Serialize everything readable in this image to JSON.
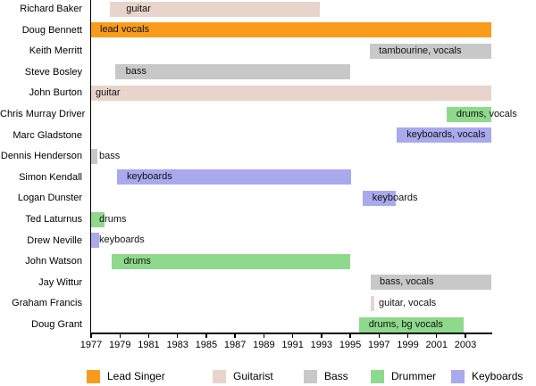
{
  "chart_data": {
    "type": "timeline",
    "title": "",
    "axis": {
      "min": 1977,
      "max": 2004.8,
      "tick_years": [
        1977,
        1979,
        1981,
        1983,
        1985,
        1987,
        1989,
        1991,
        1993,
        1995,
        1997,
        1999,
        2001,
        2003
      ],
      "grid": false
    },
    "colors": {
      "leadsinger": "#f99c1b",
      "guitarist": "#e8d4cb",
      "bass": "#c8c8c8",
      "drummer": "#8ed98c",
      "keyboards": "#a9a9ee",
      "axis": "#000000"
    },
    "members": [
      {
        "name": "Richard Baker",
        "role": "guitar",
        "category": "guitarist",
        "start": 1978.32,
        "end": 1992.9,
        "indent": 18
      },
      {
        "name": "Doug Bennett",
        "role": "lead vocals",
        "category": "leadsinger",
        "start": 1977.0,
        "end": 2004.8,
        "indent": 10
      },
      {
        "name": "Keith Merritt",
        "role": "tambourine, vocals",
        "category": "bass",
        "start": 1996.37,
        "end": 2004.8,
        "indent": 10
      },
      {
        "name": "Steve Bosley",
        "role": "bass",
        "category": "bass",
        "start": 1978.65,
        "end": 1994.97,
        "indent": 12
      },
      {
        "name": "John Burton",
        "role": "guitar",
        "category": "guitarist",
        "start": 1977.0,
        "end": 2004.8,
        "indent": 5
      },
      {
        "name": "Chris Murray Driver",
        "role": "drums, vocals",
        "category": "drummer",
        "start": 2001.69,
        "end": 2004.8,
        "indent": 11
      },
      {
        "name": "Marc Gladstone",
        "role": "keyboards, vocals",
        "category": "keyboards",
        "start": 1998.24,
        "end": 2004.8,
        "indent": 11
      },
      {
        "name": "Dennis Henderson",
        "role": "bass",
        "category": "bass",
        "start": 1977.0,
        "end": 1977.45,
        "indent": 9
      },
      {
        "name": "Simon Kendall",
        "role": "keyboards",
        "category": "keyboards",
        "start": 1978.8,
        "end": 1995.05,
        "indent": 11
      },
      {
        "name": "Logan Dunster",
        "role": "keyboards",
        "category": "keyboards",
        "start": 1995.85,
        "end": 1998.15,
        "indent": 11
      },
      {
        "name": "Ted Laturnus",
        "role": "drums",
        "category": "drummer",
        "start": 1977.0,
        "end": 1977.9,
        "indent": 9
      },
      {
        "name": "Drew Neville",
        "role": "keyboards",
        "category": "keyboards",
        "start": 1977.0,
        "end": 1977.55,
        "indent": 9
      },
      {
        "name": "John Watson",
        "role": "drums",
        "category": "drummer",
        "start": 1978.45,
        "end": 1994.99,
        "indent": 13
      },
      {
        "name": "Jay Wittur",
        "role": "bass, vocals",
        "category": "bass",
        "start": 1996.42,
        "end": 2004.8,
        "indent": 10
      },
      {
        "name": "Graham Francis",
        "role": "guitar, vocals",
        "category": "guitarist",
        "start": 1996.42,
        "end": 1996.67,
        "indent": 9
      },
      {
        "name": "Doug Grant",
        "role": "drums, bg vocals",
        "category": "drummer",
        "start": 1995.6,
        "end": 2002.85,
        "indent": 11
      }
    ],
    "legend": [
      {
        "label": "Lead Singer",
        "category": "leadsinger"
      },
      {
        "label": "Guitarist",
        "category": "guitarist"
      },
      {
        "label": "Bass",
        "category": "bass"
      },
      {
        "label": "Drummer",
        "category": "drummer"
      },
      {
        "label": "Keyboards",
        "category": "keyboards"
      }
    ],
    "legend_position": "bottom"
  }
}
